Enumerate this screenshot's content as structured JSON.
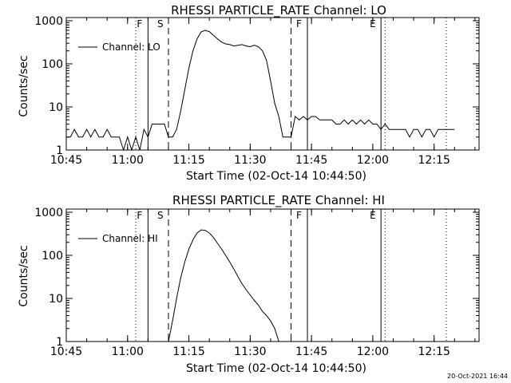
{
  "background": "#ffffff",
  "foreground": "#000000",
  "footer": {
    "timestamp": "20-Oct-2021 16:44"
  },
  "chart_data": [
    {
      "type": "line",
      "title": "RHESSI PARTICLE_RATE Channel: LO",
      "xlabel": "Start Time (02-Oct-14 10:44:50)",
      "ylabel": "Counts/sec",
      "y_scale": "log",
      "xlim": [
        "10:45",
        "12:26"
      ],
      "ylim": [
        1,
        1000
      ],
      "xticks": [
        "10:45",
        "11:00",
        "11:15",
        "11:30",
        "11:45",
        "12:00",
        "12:15"
      ],
      "yticks": [
        "1",
        "10",
        "100",
        "1000"
      ],
      "legend": {
        "label": "Channel: LO",
        "placement": "top-left"
      },
      "markers": [
        {
          "time": "11:02",
          "style": "dotted",
          "label": ""
        },
        {
          "time": "11:05",
          "style": "solid",
          "label": "F"
        },
        {
          "time": "11:10",
          "style": "dashed",
          "label": "S"
        },
        {
          "time": "11:40",
          "style": "dashed",
          "label": ""
        },
        {
          "time": "11:44",
          "style": "solid",
          "label": "F"
        },
        {
          "time": "12:02",
          "style": "solid",
          "label": "E"
        },
        {
          "time": "12:03",
          "style": "dotted",
          "label": ""
        },
        {
          "time": "12:18",
          "style": "dotted",
          "label": ""
        }
      ],
      "series": [
        {
          "x": [
            "10:45",
            "10:46",
            "10:47",
            "10:48",
            "10:49",
            "10:50",
            "10:51",
            "10:52",
            "10:53",
            "10:54",
            "10:55",
            "10:56",
            "10:57",
            "10:58",
            "10:59",
            "11:00",
            "11:01",
            "11:02",
            "11:03",
            "11:04",
            "11:05",
            "11:06",
            "11:07",
            "11:08",
            "11:09",
            "11:10",
            "11:11",
            "11:12",
            "11:13",
            "11:14",
            "11:15",
            "11:16",
            "11:17",
            "11:18",
            "11:19",
            "11:20",
            "11:21",
            "11:22",
            "11:23",
            "11:24",
            "11:25",
            "11:26",
            "11:27",
            "11:28",
            "11:29",
            "11:30",
            "11:31",
            "11:32",
            "11:33",
            "11:34",
            "11:35",
            "11:36",
            "11:37",
            "11:38",
            "11:39",
            "11:40",
            "11:41",
            "11:42",
            "11:43",
            "11:44",
            "11:45",
            "11:46",
            "11:47",
            "11:48",
            "11:49",
            "11:50",
            "11:51",
            "11:52",
            "11:53",
            "11:54",
            "11:55",
            "11:56",
            "11:57",
            "11:58",
            "11:59",
            "12:00",
            "12:01",
            "12:02",
            "12:03",
            "12:04",
            "12:05",
            "12:06",
            "12:07",
            "12:08",
            "12:09",
            "12:10",
            "12:11",
            "12:12",
            "12:13",
            "12:14",
            "12:15",
            "12:16",
            "12:17",
            "12:18",
            "12:19",
            "12:20"
          ],
          "values": [
            2,
            2,
            3,
            2,
            2,
            3,
            2,
            3,
            2,
            2,
            3,
            2,
            2,
            2,
            1,
            2,
            1,
            2,
            1,
            3,
            2,
            4,
            4,
            4,
            4,
            2,
            2,
            3,
            8,
            25,
            80,
            200,
            380,
            550,
            600,
            560,
            460,
            380,
            320,
            290,
            280,
            260,
            270,
            280,
            260,
            250,
            270,
            250,
            200,
            120,
            40,
            12,
            6,
            2,
            2,
            2,
            6,
            5,
            6,
            5,
            6,
            6,
            5,
            5,
            5,
            5,
            4,
            4,
            5,
            4,
            5,
            4,
            5,
            4,
            5,
            4,
            4,
            3,
            4,
            3,
            3,
            3,
            3,
            3,
            2,
            3,
            3,
            2,
            3,
            3,
            2,
            3,
            3,
            3,
            3,
            3
          ]
        }
      ]
    },
    {
      "type": "line",
      "title": "RHESSI PARTICLE_RATE Channel: HI",
      "xlabel": "Start Time (02-Oct-14 10:44:50)",
      "ylabel": "Counts/sec",
      "y_scale": "log",
      "xlim": [
        "10:45",
        "12:26"
      ],
      "ylim": [
        1,
        1000
      ],
      "xticks": [
        "10:45",
        "11:00",
        "11:15",
        "11:30",
        "11:45",
        "12:00",
        "12:15"
      ],
      "yticks": [
        "1",
        "10",
        "100",
        "1000"
      ],
      "legend": {
        "label": "Channel: HI",
        "placement": "top-left"
      },
      "markers": [
        {
          "time": "11:02",
          "style": "dotted",
          "label": ""
        },
        {
          "time": "11:05",
          "style": "solid",
          "label": "F"
        },
        {
          "time": "11:10",
          "style": "dashed",
          "label": "S"
        },
        {
          "time": "11:40",
          "style": "dashed",
          "label": ""
        },
        {
          "time": "11:44",
          "style": "solid",
          "label": "F"
        },
        {
          "time": "12:02",
          "style": "solid",
          "label": "E"
        },
        {
          "time": "12:03",
          "style": "dotted",
          "label": ""
        },
        {
          "time": "12:18",
          "style": "dotted",
          "label": ""
        }
      ],
      "series": [
        {
          "x": [
            "11:10",
            "11:11",
            "11:12",
            "11:13",
            "11:14",
            "11:15",
            "11:16",
            "11:17",
            "11:18",
            "11:19",
            "11:20",
            "11:21",
            "11:22",
            "11:23",
            "11:24",
            "11:25",
            "11:26",
            "11:27",
            "11:28",
            "11:29",
            "11:30",
            "11:31",
            "11:32",
            "11:33",
            "11:34",
            "11:35",
            "11:36",
            "11:37"
          ],
          "values": [
            1,
            3,
            10,
            30,
            70,
            140,
            230,
            330,
            390,
            380,
            330,
            260,
            190,
            140,
            100,
            70,
            48,
            32,
            22,
            16,
            12,
            9,
            7,
            5,
            4,
            3,
            2,
            1
          ]
        }
      ]
    }
  ]
}
